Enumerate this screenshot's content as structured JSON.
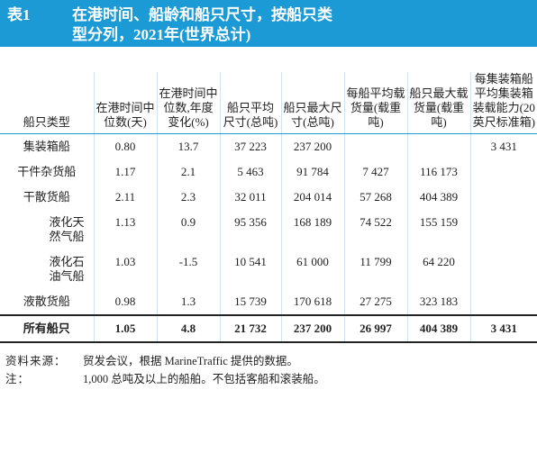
{
  "header": {
    "label": "表1",
    "title": "在港时间、船龄和船只尺寸，按船只类型分列，2021年(世界总计)"
  },
  "table": {
    "columns": [
      "船只类型",
      "在港时间中位数(天)",
      "在港时间中位数,年度变化(%)",
      "船只平均尺寸(总吨)",
      "船只最大尺寸(总吨)",
      "每船平均载货量(载重吨)",
      "船只最大载货量(载重吨)",
      "每集装箱船平均集装箱装载能力(20英尺标准箱)"
    ],
    "rows": [
      [
        "集装箱船",
        "0.80",
        "13.7",
        "37 223",
        "237 200",
        null,
        null,
        "3 431"
      ],
      [
        "干件杂货船",
        "1.17",
        "2.1",
        "5 463",
        "91 784",
        "7 427",
        "116 173",
        null
      ],
      [
        "干散货船",
        "2.11",
        "2.3",
        "32 011",
        "204 014",
        "57 268",
        "404 389",
        null
      ],
      [
        "液化天然气船",
        "1.13",
        "0.9",
        "95 356",
        "168 189",
        "74 522",
        "155 159",
        null
      ],
      [
        "液化石油气船",
        "1.03",
        "-1.5",
        "10 541",
        "61 000",
        "11 799",
        "64 220",
        null
      ],
      [
        "液散货船",
        "0.98",
        "1.3",
        "15 739",
        "170 618",
        "27 275",
        "323 183",
        null
      ]
    ],
    "total": [
      "所有船只",
      "1.05",
      "4.8",
      "21 732",
      "237 200",
      "26 997",
      "404 389",
      "3 431"
    ]
  },
  "notes": [
    {
      "label": "资料来源：",
      "text": "贸发会议，根据 MarineTraffic 提供的数据。"
    },
    {
      "label": "注：",
      "text": "1,000 总吨及以上的船舶。不包括客船和滚装船。"
    }
  ]
}
